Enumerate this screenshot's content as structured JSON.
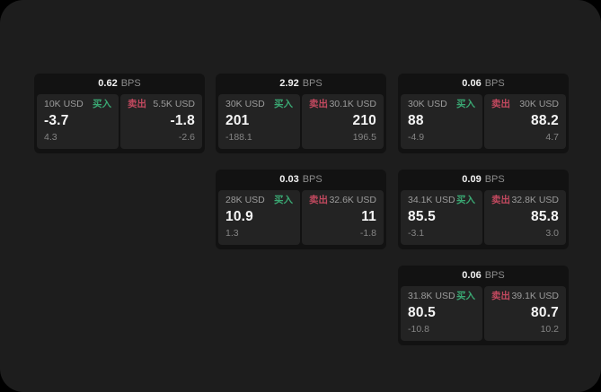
{
  "theme": {
    "outer_background": "#000000",
    "surface_background": "#1d1d1d",
    "card_background": "#121212",
    "panel_background": "#232323",
    "buy_color": "#3aa873",
    "sell_color": "#c2495f",
    "value_color": "#f5f5f5",
    "muted_text_color": "#8f8f8f"
  },
  "labels": {
    "buy": "买入",
    "sell": "卖出",
    "bps_unit": "BPS"
  },
  "cards": [
    {
      "bps": "0.62",
      "buy": {
        "amount": "10K USD",
        "value": "-3.7",
        "sub": "4.3"
      },
      "sell": {
        "amount": "5.5K USD",
        "value": "-1.8",
        "sub": "-2.6"
      }
    },
    {
      "bps": "2.92",
      "buy": {
        "amount": "30K USD",
        "value": "201",
        "sub": "-188.1"
      },
      "sell": {
        "amount": "30.1K USD",
        "value": "210",
        "sub": "196.5"
      }
    },
    {
      "bps": "0.06",
      "buy": {
        "amount": "30K USD",
        "value": "88",
        "sub": "-4.9"
      },
      "sell": {
        "amount": "30K USD",
        "value": "88.2",
        "sub": "4.7"
      }
    },
    {
      "bps": "0.03",
      "buy": {
        "amount": "28K USD",
        "value": "10.9",
        "sub": "1.3"
      },
      "sell": {
        "amount": "32.6K USD",
        "value": "11",
        "sub": "-1.8"
      }
    },
    {
      "bps": "0.09",
      "buy": {
        "amount": "34.1K USD",
        "value": "85.5",
        "sub": "-3.1"
      },
      "sell": {
        "amount": "32.8K USD",
        "value": "85.8",
        "sub": "3.0"
      }
    },
    {
      "bps": "0.06",
      "buy": {
        "amount": "31.8K USD",
        "value": "80.5",
        "sub": "-10.8"
      },
      "sell": {
        "amount": "39.1K USD",
        "value": "80.7",
        "sub": "10.2"
      }
    }
  ]
}
